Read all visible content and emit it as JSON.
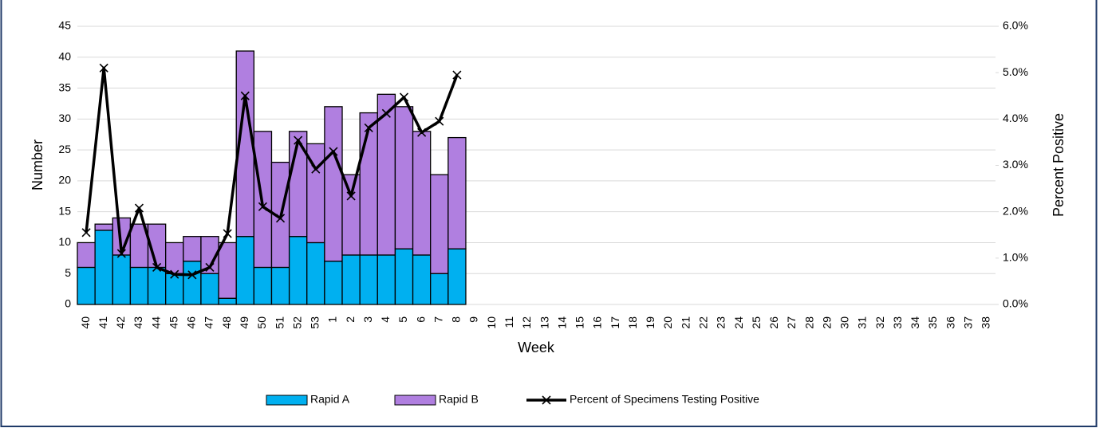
{
  "chart_data": {
    "type": "bar",
    "x_label": "Week",
    "y_label": "Number",
    "y2_label": "Percent Positive",
    "categories": [
      "40",
      "41",
      "42",
      "43",
      "44",
      "45",
      "46",
      "47",
      "48",
      "49",
      "50",
      "51",
      "52",
      "53",
      "1",
      "2",
      "3",
      "4",
      "5",
      "6",
      "7",
      "8",
      "9",
      "10",
      "11",
      "12",
      "13",
      "14",
      "15",
      "16",
      "17",
      "18",
      "19",
      "20",
      "21",
      "22",
      "23",
      "24",
      "25",
      "26",
      "27",
      "28",
      "29",
      "30",
      "31",
      "32",
      "33",
      "34",
      "35",
      "36",
      "37",
      "38"
    ],
    "series": [
      {
        "name": "Rapid A",
        "color": "#00b0f0",
        "values": [
          6,
          12,
          8,
          6,
          6,
          5,
          7,
          5,
          1,
          11,
          6,
          6,
          11,
          10,
          7,
          8,
          8,
          8,
          9,
          8,
          5,
          9,
          null,
          null,
          null,
          null,
          null,
          null,
          null,
          null,
          null,
          null,
          null,
          null,
          null,
          null,
          null,
          null,
          null,
          null,
          null,
          null,
          null,
          null,
          null,
          null,
          null,
          null,
          null,
          null,
          null,
          null
        ]
      },
      {
        "name": "Rapid B",
        "color": "#b07fe0",
        "values": [
          4,
          1,
          6,
          7,
          7,
          5,
          4,
          6,
          9,
          30,
          22,
          17,
          17,
          16,
          25,
          13,
          23,
          26,
          23,
          20,
          16,
          18,
          null,
          null,
          null,
          null,
          null,
          null,
          null,
          null,
          null,
          null,
          null,
          null,
          null,
          null,
          null,
          null,
          null,
          null,
          null,
          null,
          null,
          null,
          null,
          null,
          null,
          null,
          null,
          null,
          null,
          null
        ]
      },
      {
        "name": "Percent of Specimens Testing Positive",
        "color": "#000000",
        "axis": "y2",
        "values": [
          1.55,
          5.1,
          1.1,
          2.08,
          0.8,
          0.65,
          0.64,
          0.8,
          1.53,
          4.5,
          2.11,
          1.86,
          3.54,
          2.92,
          3.3,
          2.34,
          3.81,
          4.12,
          4.47,
          3.71,
          3.95,
          4.95,
          null,
          null,
          null,
          null,
          null,
          null,
          null,
          null,
          null,
          null,
          null,
          null,
          null,
          null,
          null,
          null,
          null,
          null,
          null,
          null,
          null,
          null,
          null,
          null,
          null,
          null,
          null,
          null,
          null,
          null
        ]
      }
    ],
    "ylim": [
      0,
      45
    ],
    "yticks": [
      0,
      5,
      10,
      15,
      20,
      25,
      30,
      35,
      40,
      45
    ],
    "y2lim": [
      0,
      6
    ],
    "y2ticks": [
      {
        "value": 0,
        "label": "0.0%"
      },
      {
        "value": 1,
        "label": "1.0%"
      },
      {
        "value": 2,
        "label": "2.0%"
      },
      {
        "value": 3,
        "label": "3.0%"
      },
      {
        "value": 4,
        "label": "4.0%"
      },
      {
        "value": 5,
        "label": "5.0%"
      },
      {
        "value": 6,
        "label": "6.0%"
      }
    ],
    "grid": true,
    "legend": "bottom"
  }
}
